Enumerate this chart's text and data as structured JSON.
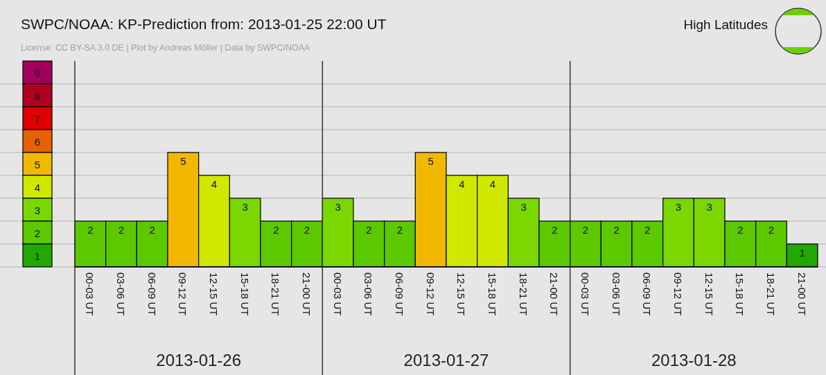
{
  "chart_data": [
    {
      "type": "heatmap",
      "categories": [
        null
      ],
      "y_categories": [
        null,
        null,
        null,
        null,
        null,
        null,
        null,
        null,
        null
      ],
      "cells": [
        [
          9
        ],
        [
          8
        ],
        [
          7
        ],
        [
          6
        ],
        [
          5
        ],
        [
          4
        ],
        [
          3
        ],
        [
          2
        ],
        [
          1
        ]
      ],
      "data_labels": true
    },
    {
      "type": "bar",
      "title": "SWPC/NOAA: KP-Prediction from: 2013-01-25 22:00 UT",
      "subtitle": "License: CC BY-SA 3.0 DE | Plot by Andreas Möller | Data by SWPC/NOAA",
      "categories": [
        "00-03 UT",
        "03-06 UT",
        "06-09 UT",
        "09-12 UT",
        "12-15 UT",
        "15-18 UT",
        "18-21 UT",
        "21-00 UT",
        "00-03 UT",
        "03-06 UT",
        "06-09 UT",
        "09-12 UT",
        "12-15 UT",
        "15-18 UT",
        "18-21 UT",
        "21-00 UT",
        "00-03 UT",
        "03-06 UT",
        "06-09 UT",
        "09-12 UT",
        "12-15 UT",
        "15-18 UT",
        "18-21 UT",
        "21-00 UT"
      ],
      "values": [
        2,
        2,
        2,
        5,
        4,
        3,
        2,
        2,
        3,
        2,
        2,
        5,
        4,
        4,
        3,
        2,
        2,
        2,
        2,
        3,
        3,
        2,
        2,
        1
      ],
      "colors": [
        "#5cc800",
        "#5cc800",
        "#5cc800",
        "#f2b800",
        "#d0e800",
        "#7ad800",
        "#5cc800",
        "#5cc800",
        "#7ad800",
        "#5cc800",
        "#5cc800",
        "#f2b800",
        "#d0e800",
        "#d0e800",
        "#7ad800",
        "#5cc800",
        "#5cc800",
        "#5cc800",
        "#5cc800",
        "#7ad800",
        "#7ad800",
        "#5cc800",
        "#5cc800",
        "#22a800"
      ],
      "data_labels": true,
      "annotations": [
        "2013-01-26",
        "2013-01-27",
        "2013-01-28",
        "High Latitudes"
      ]
    }
  ]
}
